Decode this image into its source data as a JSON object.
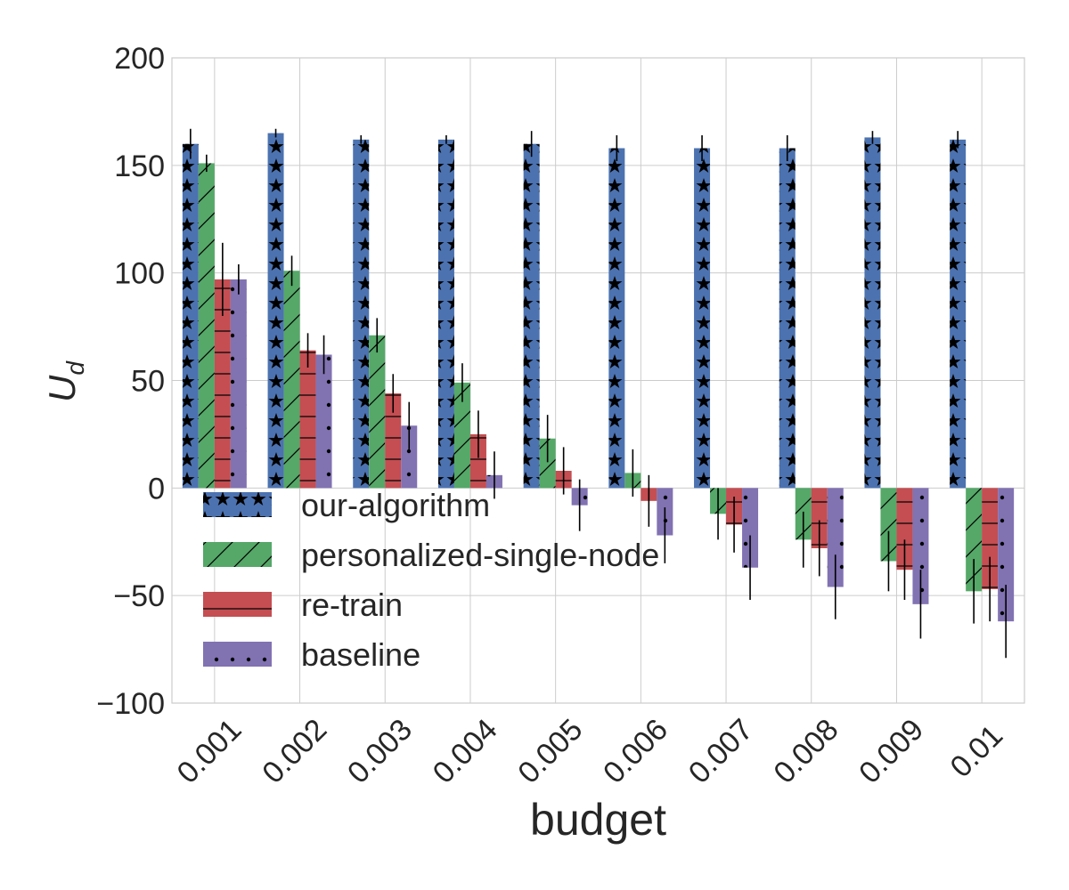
{
  "chart_data": {
    "type": "bar",
    "title": "",
    "xlabel": "budget",
    "ylabel_main": "U",
    "ylabel_sub": "d",
    "ylim": [
      -100,
      200
    ],
    "yticks": [
      -100,
      -50,
      0,
      50,
      100,
      150,
      200
    ],
    "ytick_labels": [
      "−100",
      "−50",
      "0",
      "50",
      "100",
      "150",
      "200"
    ],
    "grid": true,
    "legend_position": "lower-left",
    "categories": [
      "0.001",
      "0.002",
      "0.003",
      "0.004",
      "0.005",
      "0.006",
      "0.007",
      "0.008",
      "0.009",
      "0.01"
    ],
    "series": [
      {
        "name": "our-algorithm",
        "color": "#4C72B0",
        "hatch": "stars",
        "values": [
          160,
          165,
          162,
          162,
          160,
          158,
          158,
          158,
          163,
          162
        ],
        "errors": [
          7,
          2,
          2,
          2,
          6,
          6,
          6,
          6,
          3,
          4
        ]
      },
      {
        "name": "personalized-single-node",
        "color": "#55A868",
        "hatch": "slash",
        "values": [
          151,
          101,
          71,
          49,
          23,
          7,
          -12,
          -24,
          -34,
          -48
        ],
        "errors": [
          4,
          7,
          8,
          9,
          11,
          11,
          12,
          13,
          14,
          15
        ]
      },
      {
        "name": "re-train",
        "color": "#C44E52",
        "hatch": "horizontal",
        "values": [
          97,
          64,
          44,
          25,
          8,
          -6,
          -17,
          -28,
          -38,
          -47
        ],
        "errors": [
          17,
          8,
          9,
          11,
          11,
          12,
          13,
          13,
          14,
          15
        ]
      },
      {
        "name": "baseline",
        "color": "#8172B2",
        "hatch": "dots",
        "values": [
          97,
          62,
          29,
          6,
          -8,
          -22,
          -37,
          -46,
          -54,
          -62
        ],
        "errors": [
          7,
          9,
          11,
          11,
          12,
          13,
          15,
          15,
          16,
          17
        ]
      }
    ]
  }
}
